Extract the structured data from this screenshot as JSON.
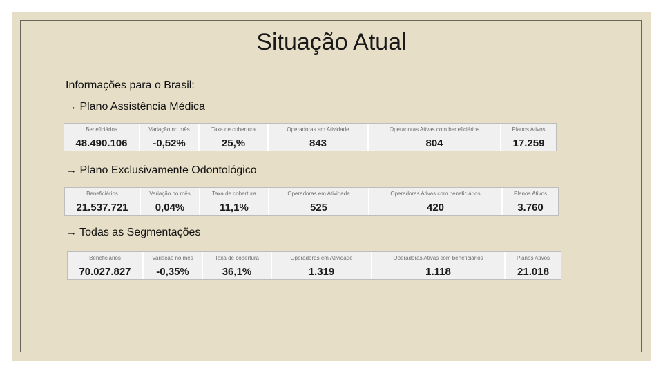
{
  "slide": {
    "title": "Situação Atual",
    "intro": "Informações para o Brasil:"
  },
  "sections": [
    {
      "heading": "→ Plano Assistência Médica",
      "labels": [
        "Beneficiários",
        "Variação no mês",
        "Taxa de cobertura",
        "Operadoras em Atividade",
        "Operadoras Ativas com beneficiários",
        "Planos Ativos"
      ],
      "values": [
        "48.490.106",
        "-0,52%",
        "25,%",
        "843",
        "804",
        "17.259"
      ]
    },
    {
      "heading": "→ Plano Exclusivamente Odontológico",
      "labels": [
        "Beneficiários",
        "Variação no mês",
        "Taxa de cobertura",
        "Operadoras em Atividade",
        "Operadoras Ativas com beneficiários",
        "Planos Ativos"
      ],
      "values": [
        "21.537.721",
        "0,04%",
        "11,1%",
        "525",
        "420",
        "3.760"
      ]
    },
    {
      "heading": "→ Todas as Segmentações",
      "labels": [
        "Beneficiários",
        "Variação no mês",
        "Taxa de cobertura",
        "Operadoras em Atividade",
        "Operadoras Ativas com beneficiários",
        "Planos Ativos"
      ],
      "values": [
        "70.027.827",
        "-0,35%",
        "36,1%",
        "1.319",
        "1.118",
        "21.018"
      ]
    }
  ]
}
